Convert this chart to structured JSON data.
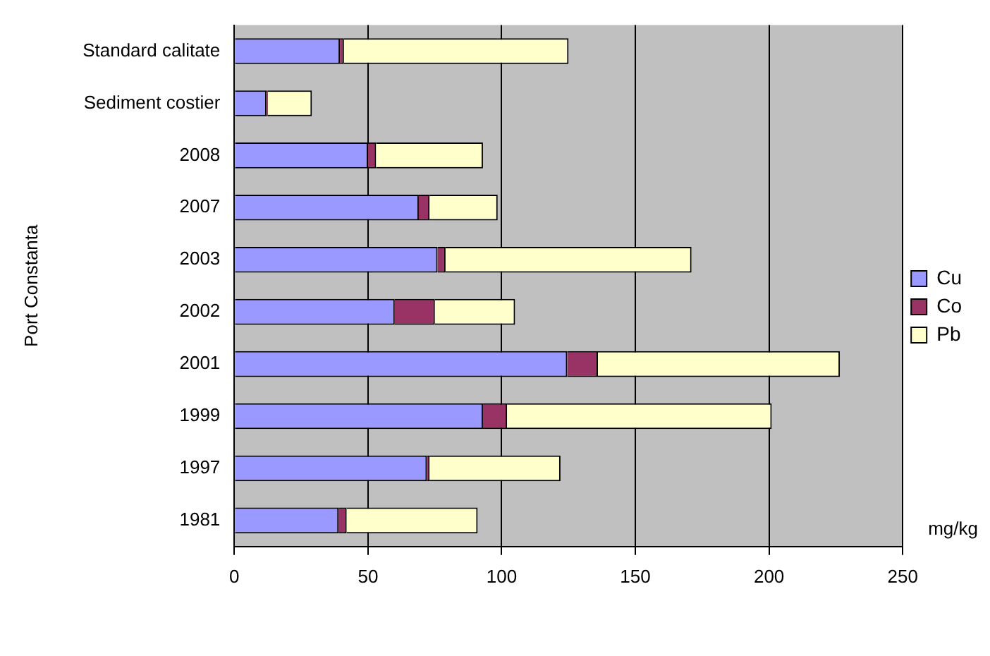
{
  "chart_data": {
    "type": "bar",
    "orientation": "horizontal",
    "stacked": true,
    "categories": [
      "Standard calitate",
      "Sediment costier",
      "2008",
      "2007",
      "2003",
      "2002",
      "2001",
      "1999",
      "1997",
      "1981"
    ],
    "series": [
      {
        "name": "Cu",
        "color": "#9999ff",
        "values": [
          39.5,
          12,
          50,
          69,
          76,
          60,
          124.5,
          93,
          72,
          39
        ]
      },
      {
        "name": "Co",
        "color": "#993366",
        "values": [
          1.5,
          0.5,
          3,
          4,
          3,
          15,
          11.5,
          9,
          1,
          3
        ]
      },
      {
        "name": "Pb",
        "color": "#ffffcc",
        "values": [
          84,
          16.5,
          40,
          25.5,
          92,
          30,
          90.5,
          99,
          49,
          49
        ]
      }
    ],
    "xlim": [
      0,
      250
    ],
    "xticks": [
      0,
      50,
      100,
      150,
      200,
      250
    ],
    "xlabel": "mg/kg",
    "ylabel": "Port Constanta",
    "grid": "x",
    "legend": "right"
  }
}
